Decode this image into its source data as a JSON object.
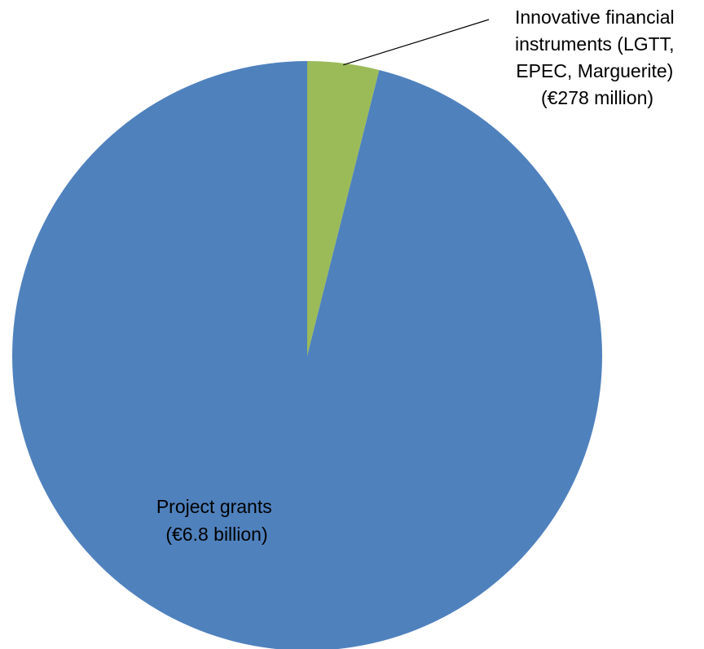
{
  "chart_data": {
    "type": "pie",
    "title": "",
    "start_angle_deg": 0,
    "direction": "clockwise",
    "slices": [
      {
        "label_lines": [
          "Innovative financial",
          "instruments (LGTT,",
          "EPEC, Marguerite)",
          "(€278 million)"
        ],
        "value": 278,
        "unit": "million €",
        "color": "#9bbb59"
      },
      {
        "label_lines": [
          "Project grants",
          "(€6.8 billion)"
        ],
        "value": 6800,
        "unit": "million €",
        "color": "#4f81bd"
      }
    ],
    "legend": "none",
    "label_placement": [
      "outside-top-right-with-leader",
      "inside-bottom-left"
    ]
  }
}
